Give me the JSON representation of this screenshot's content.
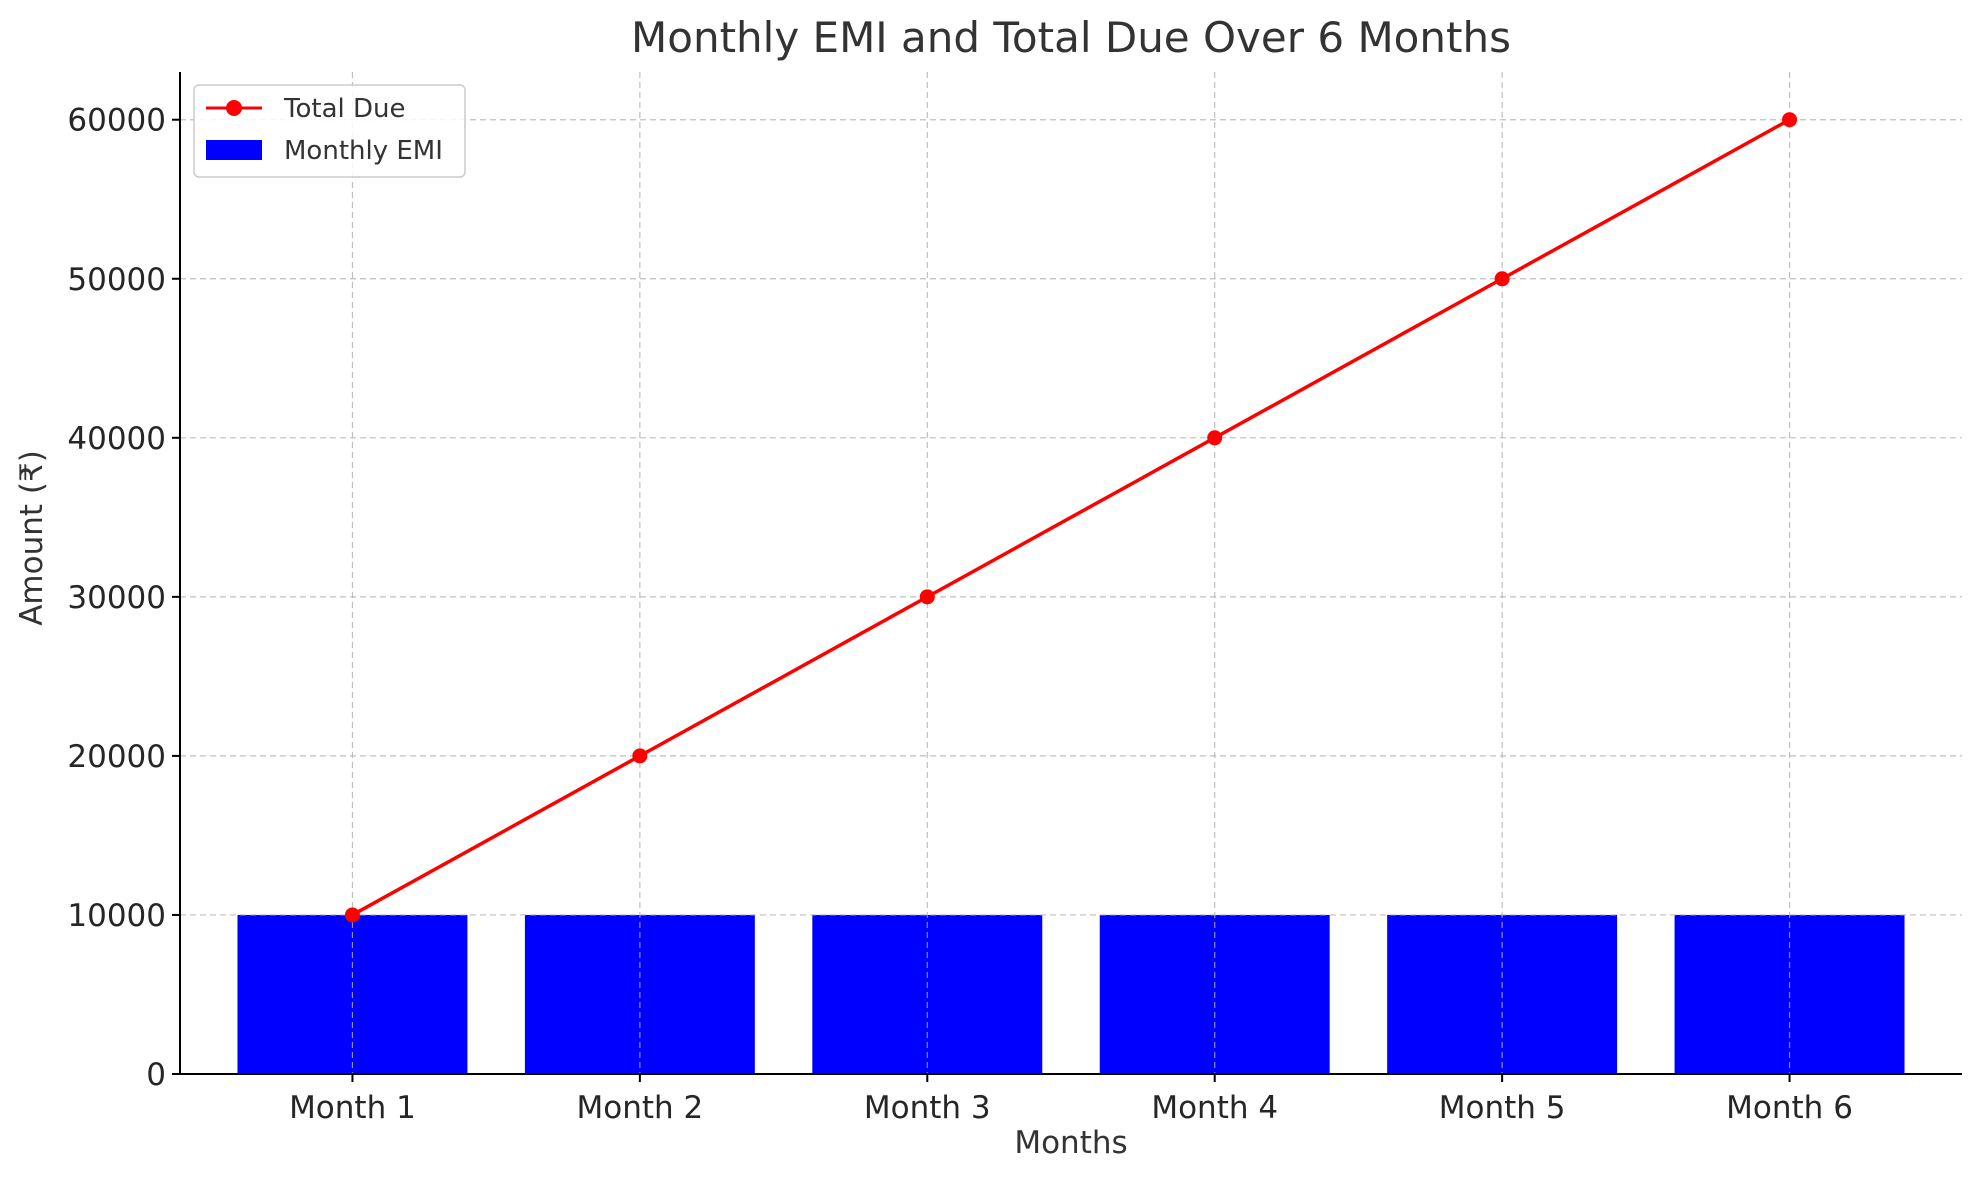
{
  "chart_data": {
    "type": "bar",
    "title": "Monthly EMI and Total Due Over 6 Months",
    "xlabel": "Months",
    "ylabel": "Amount (₹)",
    "categories": [
      "Month 1",
      "Month 2",
      "Month 3",
      "Month 4",
      "Month 5",
      "Month 6"
    ],
    "ylim": [
      0,
      63000
    ],
    "yticks": [
      0,
      10000,
      20000,
      30000,
      40000,
      50000,
      60000
    ],
    "grid": true,
    "legend_position": "top-left",
    "series": [
      {
        "name": "Monthly EMI",
        "type": "bar",
        "color": "#0000ff",
        "values": [
          10000,
          10000,
          10000,
          10000,
          10000,
          10000
        ]
      },
      {
        "name": "Total Due",
        "type": "line",
        "marker": "circle",
        "color": "#ff0000",
        "values": [
          10000,
          20000,
          30000,
          40000,
          50000,
          60000
        ]
      }
    ],
    "legend": [
      "Total Due",
      "Monthly EMI"
    ]
  }
}
